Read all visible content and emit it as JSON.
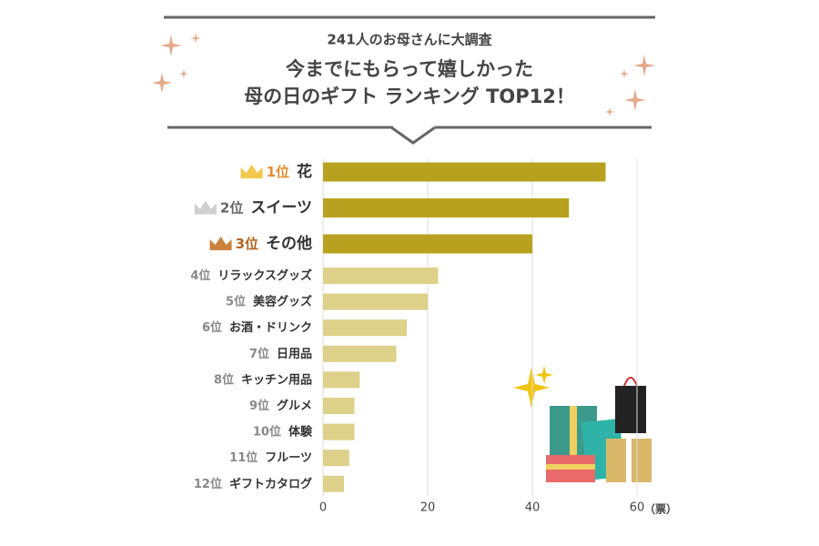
{
  "chart_data": {
    "type": "barh",
    "subtitle": "241人のお母さんに大調査",
    "title_lines": [
      "今までにもらって嬉しかった",
      "母の日のギフト ランキング TOP12！"
    ],
    "ranks": [
      "1位",
      "2位",
      "3位",
      "4位",
      "5位",
      "6位",
      "7位",
      "8位",
      "9位",
      "10位",
      "11位",
      "12位"
    ],
    "categories": [
      "花",
      "スイーツ",
      "その他",
      "リラックスグッズ",
      "美容グッズ",
      "お酒・ドリンク",
      "日用品",
      "キッチン用品",
      "グルメ",
      "体験",
      "フルーツ",
      "ギフトカタログ"
    ],
    "values": [
      54,
      47,
      40,
      22,
      20,
      16,
      14,
      7,
      6,
      6,
      5,
      4
    ],
    "colors": [
      "#b8a11f",
      "#b8a11f",
      "#b8a11f",
      "#ddd089",
      "#ddd089",
      "#ddd089",
      "#ddd089",
      "#ddd089",
      "#ddd089",
      "#ddd089",
      "#ddd089",
      "#ddd089"
    ],
    "x_label": "（票）",
    "xlim": [
      0,
      60
    ],
    "xticks": [
      0,
      20,
      40,
      60
    ],
    "grid": true
  }
}
